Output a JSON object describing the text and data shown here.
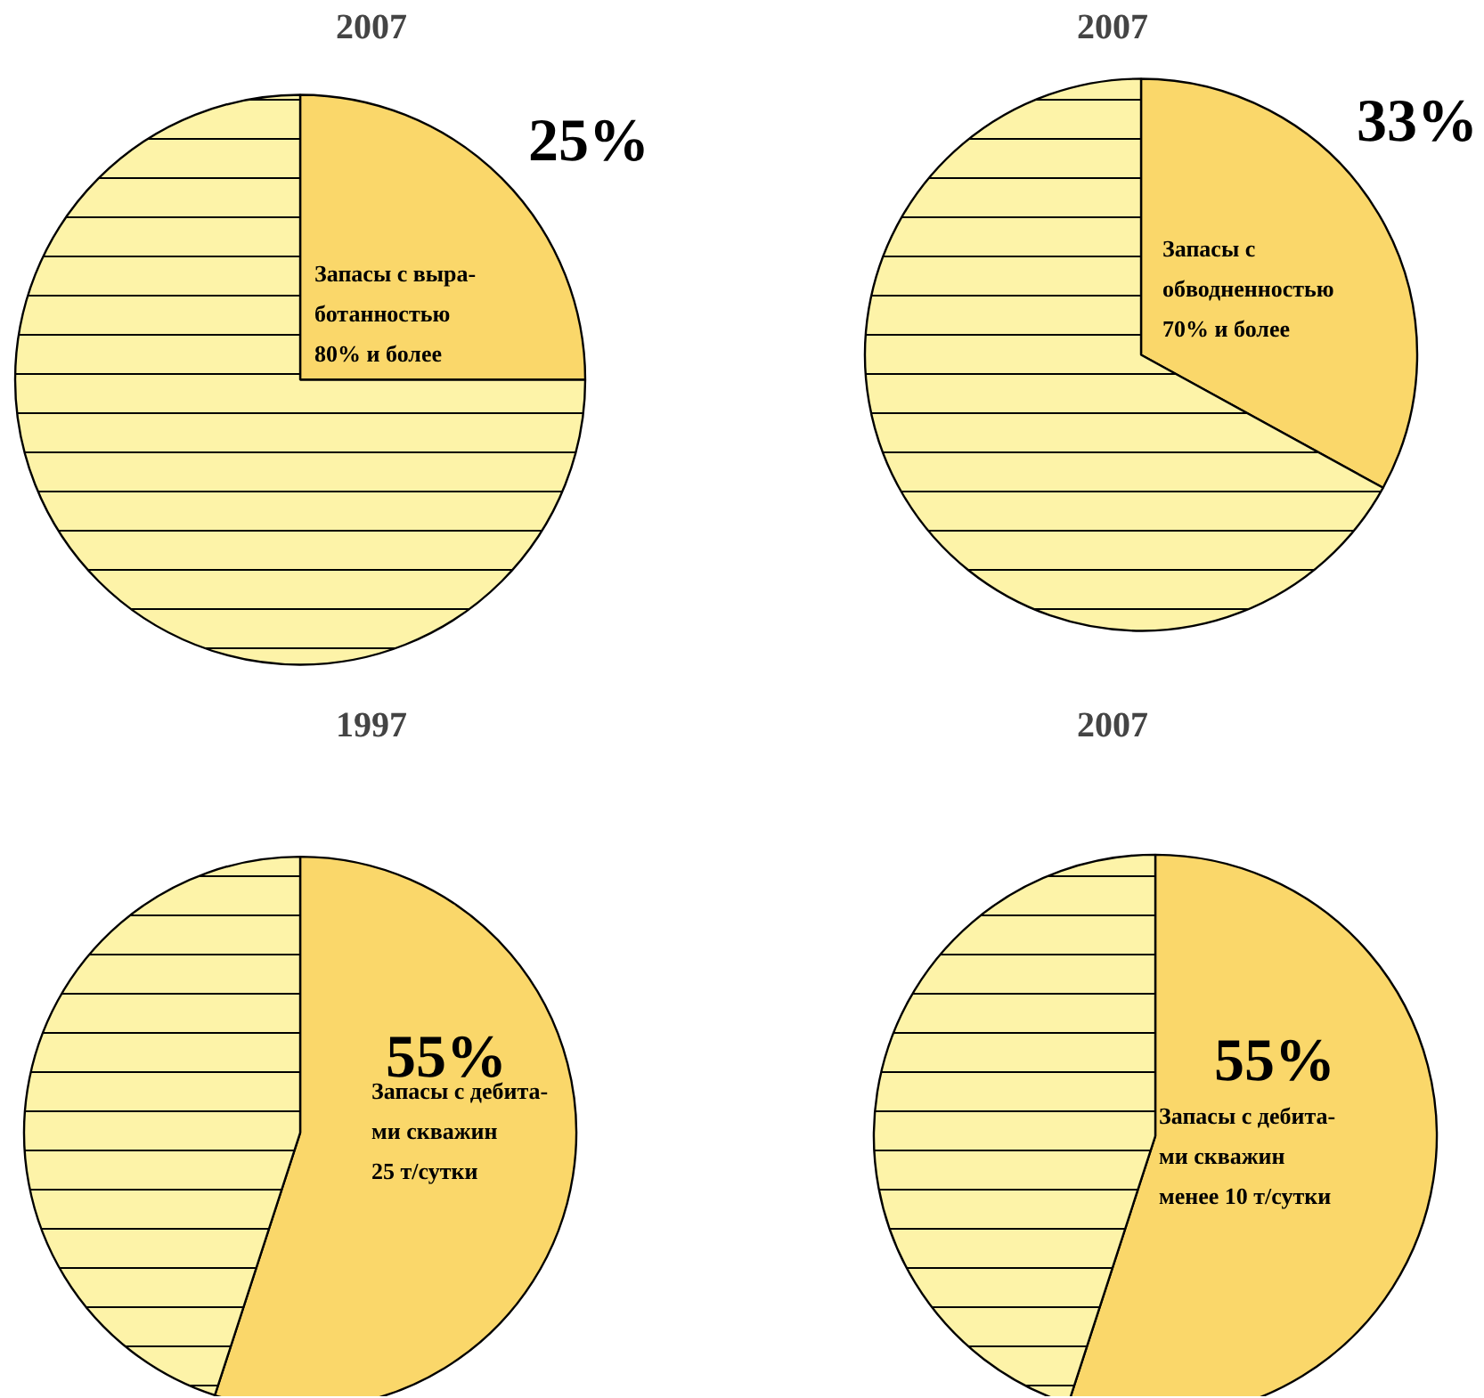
{
  "chart_data": [
    {
      "type": "pie",
      "title": "2007",
      "categories": [
        "Запасы с выра-\nботанностью\n80% и более",
        null
      ],
      "values": [
        25,
        75
      ],
      "colors": [
        "#fad76a",
        "#fdf3a8"
      ],
      "value_labels": [
        "25%",
        null
      ]
    },
    {
      "type": "pie",
      "title": "2007",
      "categories": [
        "Запасы с\nобводненностью\n70% и более",
        null
      ],
      "values": [
        33,
        67
      ],
      "colors": [
        "#fad76a",
        "#fdf3a8"
      ],
      "value_labels": [
        "33%",
        null
      ]
    },
    {
      "type": "pie",
      "title": "1997",
      "categories": [
        "Запасы с дебита-\nми скважин\n25 т/сутки",
        null
      ],
      "values": [
        55,
        45
      ],
      "colors": [
        "#fad76a",
        "#fdf3a8"
      ],
      "value_labels": [
        "55%",
        null
      ]
    },
    {
      "type": "pie",
      "title": "2007",
      "categories": [
        "Запасы с дебита-\nми скважин\nменее 10 т/сутки",
        null
      ],
      "values": [
        55,
        45
      ],
      "colors": [
        "#fad76a",
        "#fdf3a8"
      ],
      "value_labels": [
        "55%",
        null
      ]
    }
  ]
}
